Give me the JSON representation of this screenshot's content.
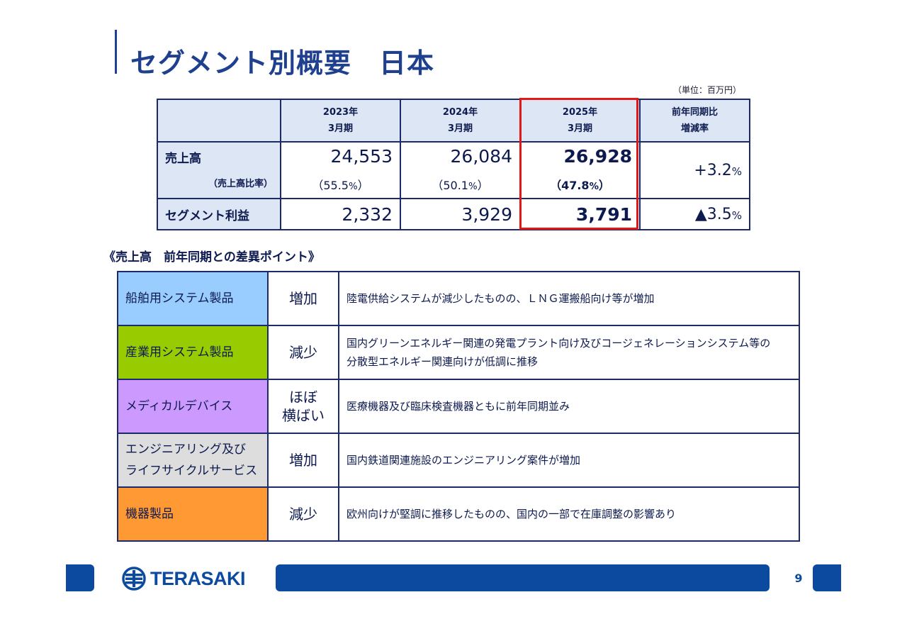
{
  "title": "セグメント別概要　日本",
  "unit_note": "（単位：百万円）",
  "summary": {
    "headers": [
      {
        "line1": "2023年",
        "line2": "3月期"
      },
      {
        "line1": "2024年",
        "line2": "3月期"
      },
      {
        "line1": "2025年",
        "line2": "3月期"
      },
      {
        "line1": "前年同期比",
        "line2": "増減率"
      }
    ],
    "sales": {
      "label": "売上高",
      "values": [
        "24,553",
        "26,084",
        "26,928"
      ],
      "growth": "+3.2",
      "growth_unit": "%"
    },
    "ratio": {
      "label": "（売上高比率）",
      "values": [
        {
          "open": "（",
          "num": "55.5",
          "unit": "%",
          "close": "）"
        },
        {
          "open": "（",
          "num": "50.1",
          "unit": "%",
          "close": "）"
        },
        {
          "open": "（",
          "num": "47.8",
          "unit": "%",
          "close": "）"
        }
      ]
    },
    "profit": {
      "label": "セグメント利益",
      "values": [
        "2,332",
        "3,929",
        "3,791"
      ],
      "growth": "▲3.5",
      "growth_unit": "%"
    },
    "highlight_color": "#e01818"
  },
  "points_heading": "《売上高　前年同期との差異ポイント》",
  "points": [
    {
      "segment": "船舶用システム製品",
      "change": "増加",
      "color": "#99ccff",
      "description": [
        "陸電供給システムが減少したものの、ＬＮＧ運搬船向け等が増加"
      ]
    },
    {
      "segment": "産業用システム製品",
      "change": "減少",
      "color": "#99cc00",
      "description": [
        "国内グリーンエネルギー関連の発電プラント向け及びコージェネレーションシステム等の",
        "分散型エネルギー関連向けが低調に推移"
      ]
    },
    {
      "segment": "メディカルデバイス",
      "change": "ほぼ\n横ばい",
      "color": "#cc99ff",
      "description": [
        "医療機器及び臨床検査機器ともに前年同期並み"
      ]
    },
    {
      "segment": "エンジニアリング及び\nライフサイクルサービス",
      "change": "増加",
      "color": "#dddddd",
      "description": [
        "国内鉄道関連施設のエンジニアリング案件が増加"
      ]
    },
    {
      "segment": "機器製品",
      "change": "減少",
      "color": "#ff9933",
      "description": [
        "欧州向けが堅調に推移したものの、国内の一部で在庫調整の影響あり"
      ]
    }
  ],
  "footer": {
    "logo_text": "TERASAKI",
    "page_number": "9",
    "brand_color": "#0b4a9e"
  }
}
